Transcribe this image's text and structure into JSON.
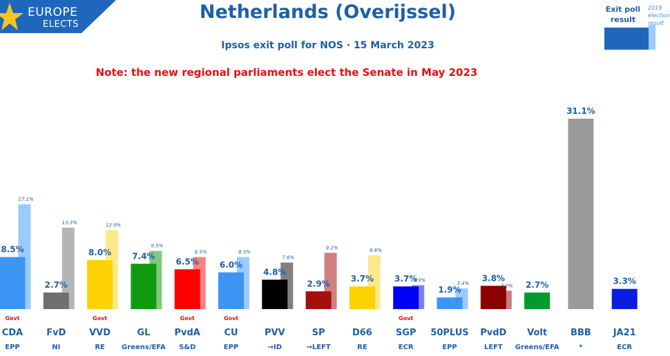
{
  "logo": {
    "line1": "EUROPE",
    "line2": "ELECTS"
  },
  "title": "Netherlands (Overijssel)",
  "subtitle": "Ipsos exit poll for NOS · 15 March 2023",
  "note": "Note: the new regional parliaments elect the Senate in May 2023",
  "legend": {
    "current_label": "Exit poll result",
    "previous_label": "2019 election result"
  },
  "chart_data": {
    "type": "bar",
    "ylim": [
      0,
      32
    ],
    "categories": [
      "CDA",
      "FvD",
      "VVD",
      "GL",
      "PvdA",
      "CU",
      "PVV",
      "SP",
      "D66",
      "SGP",
      "50PLUS",
      "PvdD",
      "Volt",
      "BBB",
      "JA21"
    ],
    "groups": [
      "EPP",
      "NI",
      "RE",
      "Greens/EFA",
      "S&D",
      "EPP",
      "→ID",
      "→LEFT",
      "RE",
      "ECR",
      "EPP",
      "LEFT",
      "Greens/EFA",
      "*",
      "ECR"
    ],
    "govt": [
      true,
      false,
      true,
      false,
      true,
      true,
      false,
      false,
      false,
      true,
      false,
      false,
      false,
      false,
      false
    ],
    "govt_label": "Govt",
    "series": [
      {
        "name": "Exit poll result",
        "values": [
          8.5,
          2.7,
          8.0,
          7.4,
          6.5,
          6.0,
          4.8,
          2.9,
          3.7,
          3.7,
          1.9,
          3.8,
          2.7,
          31.1,
          3.3
        ],
        "labels": [
          "8.5%",
          "2.7%",
          "8.0%",
          "7.4%",
          "6.5%",
          "6.0%",
          "4.8%",
          "2.9%",
          "3.7%",
          "3.7%",
          "1.9%",
          "3.8%",
          "2.7%",
          "31.1%",
          "3.3%"
        ]
      },
      {
        "name": "2019 election result",
        "values": [
          17.1,
          13.3,
          12.9,
          9.5,
          8.5,
          8.5,
          7.6,
          9.2,
          8.8,
          3.9,
          3.4,
          3.0,
          null,
          null,
          null
        ],
        "labels": [
          "17.1%",
          "13.3%",
          "12.9%",
          "9.5%",
          "8.5%",
          "8.5%",
          "7.6%",
          "9.2%",
          "8.8%",
          "3.9%",
          "3.4%",
          "3.0%",
          null,
          null,
          null
        ]
      }
    ],
    "colors": [
      "#3d95f3",
      "#6f6f6f",
      "#fdd203",
      "#109a10",
      "#fe0000",
      "#3d95f3",
      "#000000",
      "#a50f0f",
      "#fdd203",
      "#0000f5",
      "#3d95f3",
      "#8b0000",
      "#009a2e",
      "#9a9a9a",
      "#0b1ddc"
    ],
    "prev_colors": [
      "#9ccaff",
      "#b5b5b5",
      "#fee98a",
      "#80c880",
      "#ff8080",
      "#9ccaff",
      "#808080",
      "#d08080",
      "#fee98a",
      "#8080fa",
      "#9ccaff",
      "#c58080",
      null,
      null,
      null
    ]
  }
}
